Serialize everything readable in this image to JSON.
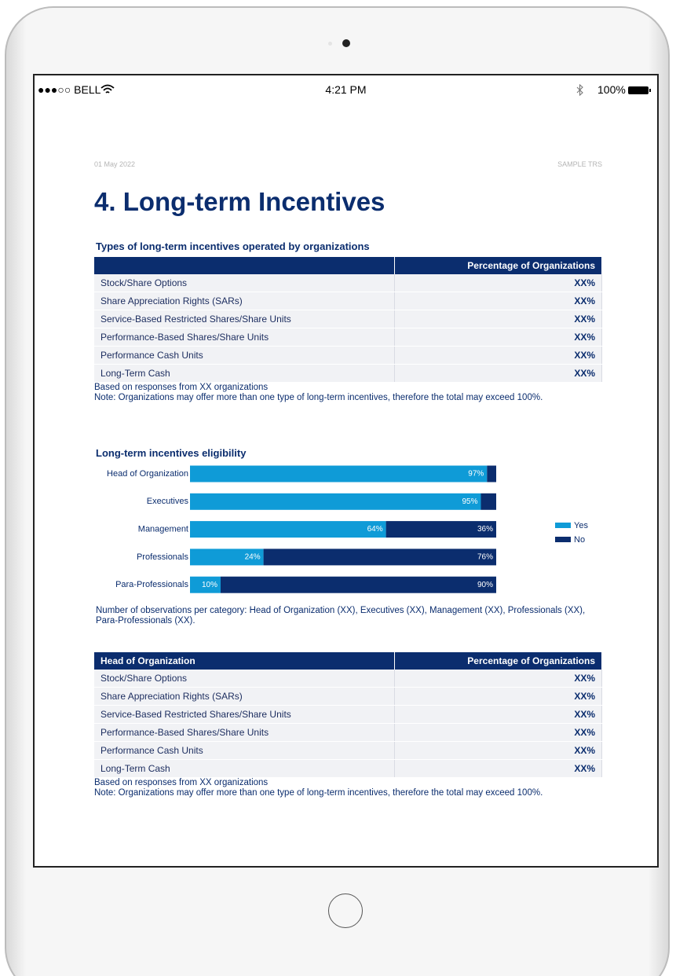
{
  "status_bar": {
    "carrier": "●●●○○ BELL",
    "time": "4:21 PM",
    "battery": "100%"
  },
  "document": {
    "date": "01 May 2022",
    "label": "SAMPLE TRS",
    "title": "4. Long-term Incentives"
  },
  "table1": {
    "title": "Types of long-term incentives operated by organizations",
    "column": "Percentage of Organizations",
    "rows": [
      [
        "Stock/Share Options",
        "XX%"
      ],
      [
        "Share Appreciation Rights (SARs)",
        "XX%"
      ],
      [
        "Service-Based Restricted Shares/Share Units",
        "XX%"
      ],
      [
        "Performance-Based Shares/Share Units",
        "XX%"
      ],
      [
        "Performance Cash Units",
        "XX%"
      ],
      [
        "Long-Term Cash",
        "XX%"
      ]
    ],
    "notes": [
      "Based on responses from XX organizations",
      "Note: Organizations may offer more than one type of long-term incentives, therefore the total may exceed 100%."
    ]
  },
  "chart_data": {
    "type": "bar",
    "orientation": "horizontal",
    "stacked": true,
    "title": "Long-term incentives eligibility",
    "categories": [
      "Head of Organization",
      "Executives",
      "Management",
      "Professionals",
      "Para-Professionals"
    ],
    "series": [
      {
        "name": "Yes",
        "color": "#0f9bd7",
        "values": [
          97,
          95,
          64,
          24,
          10
        ],
        "value_labels": [
          "97%",
          "95%",
          "64%",
          "24%",
          "10%"
        ]
      },
      {
        "name": "No",
        "color": "#0b2d6e",
        "values": [
          3,
          5,
          36,
          76,
          90
        ],
        "value_labels": [
          null,
          null,
          "36%",
          "76%",
          "90%"
        ]
      }
    ],
    "legend": "right",
    "note": "Number of observations per category: Head of Organization (XX), Executives (XX), Management (XX), Professionals (XX), Para-Professionals (XX)."
  },
  "table2": {
    "header": [
      "Head of Organization",
      "Percentage of Organizations"
    ],
    "rows": [
      [
        "Stock/Share Options",
        "XX%"
      ],
      [
        "Share Appreciation Rights (SARs)",
        "XX%"
      ],
      [
        "Service-Based Restricted Shares/Share Units",
        "XX%"
      ],
      [
        "Performance-Based Shares/Share Units",
        "XX%"
      ],
      [
        "Performance Cash Units",
        "XX%"
      ],
      [
        "Long-Term Cash",
        "XX%"
      ]
    ],
    "notes": [
      "Based on responses from XX organizations",
      "Note: Organizations may offer more than one type of long-term incentives, therefore the total may exceed 100%."
    ]
  }
}
